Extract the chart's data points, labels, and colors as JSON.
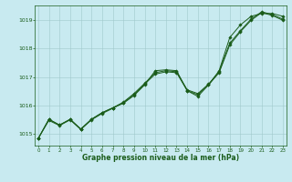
{
  "title": "Graphe pression niveau de la mer (hPa)",
  "background_color": "#c8eaf0",
  "plot_background": "#c8eaf0",
  "grid_color": "#a0c8cc",
  "line_color": "#1a5c1a",
  "marker_color": "#1a5c1a",
  "yticks": [
    1015,
    1016,
    1017,
    1018,
    1019
  ],
  "xtick_labels": [
    "0",
    "1",
    "2",
    "3",
    "4",
    "5",
    "6",
    "7",
    "8",
    "9",
    "10",
    "11",
    "12",
    "13",
    "14",
    "15",
    "16",
    "17",
    "18",
    "19",
    "20",
    "21",
    "22",
    "23"
  ],
  "xticks": [
    0,
    1,
    2,
    3,
    4,
    5,
    6,
    7,
    8,
    9,
    10,
    11,
    12,
    13,
    14,
    15,
    16,
    17,
    18,
    19,
    20,
    21,
    22,
    23
  ],
  "ylim": [
    1014.6,
    1019.5
  ],
  "xlim": [
    -0.3,
    23.3
  ],
  "hours": [
    0,
    1,
    2,
    3,
    4,
    5,
    6,
    7,
    8,
    9,
    10,
    11,
    12,
    13,
    14,
    15,
    16,
    17,
    18,
    19,
    20,
    21,
    22,
    23
  ],
  "line1": [
    1014.85,
    1015.52,
    1015.32,
    1015.52,
    1015.18,
    1015.52,
    1015.75,
    1015.92,
    1016.08,
    1016.35,
    1016.72,
    1017.22,
    1017.25,
    1017.22,
    1016.52,
    1016.32,
    1016.72,
    1017.22,
    1018.38,
    1018.82,
    1019.12,
    1019.22,
    1019.22,
    1019.12
  ],
  "line2": [
    1014.85,
    1015.52,
    1015.32,
    1015.52,
    1015.18,
    1015.52,
    1015.75,
    1015.92,
    1016.12,
    1016.42,
    1016.78,
    1017.15,
    1017.22,
    1017.18,
    1016.55,
    1016.42,
    1016.75,
    1017.18,
    1018.18,
    1018.62,
    1019.02,
    1019.28,
    1019.18,
    1019.02
  ],
  "line3": [
    1014.85,
    1015.48,
    1015.3,
    1015.5,
    1015.16,
    1015.5,
    1015.72,
    1015.9,
    1016.1,
    1016.38,
    1016.75,
    1017.1,
    1017.18,
    1017.15,
    1016.52,
    1016.38,
    1016.72,
    1017.15,
    1018.12,
    1018.58,
    1018.98,
    1019.25,
    1019.15,
    1018.98
  ]
}
